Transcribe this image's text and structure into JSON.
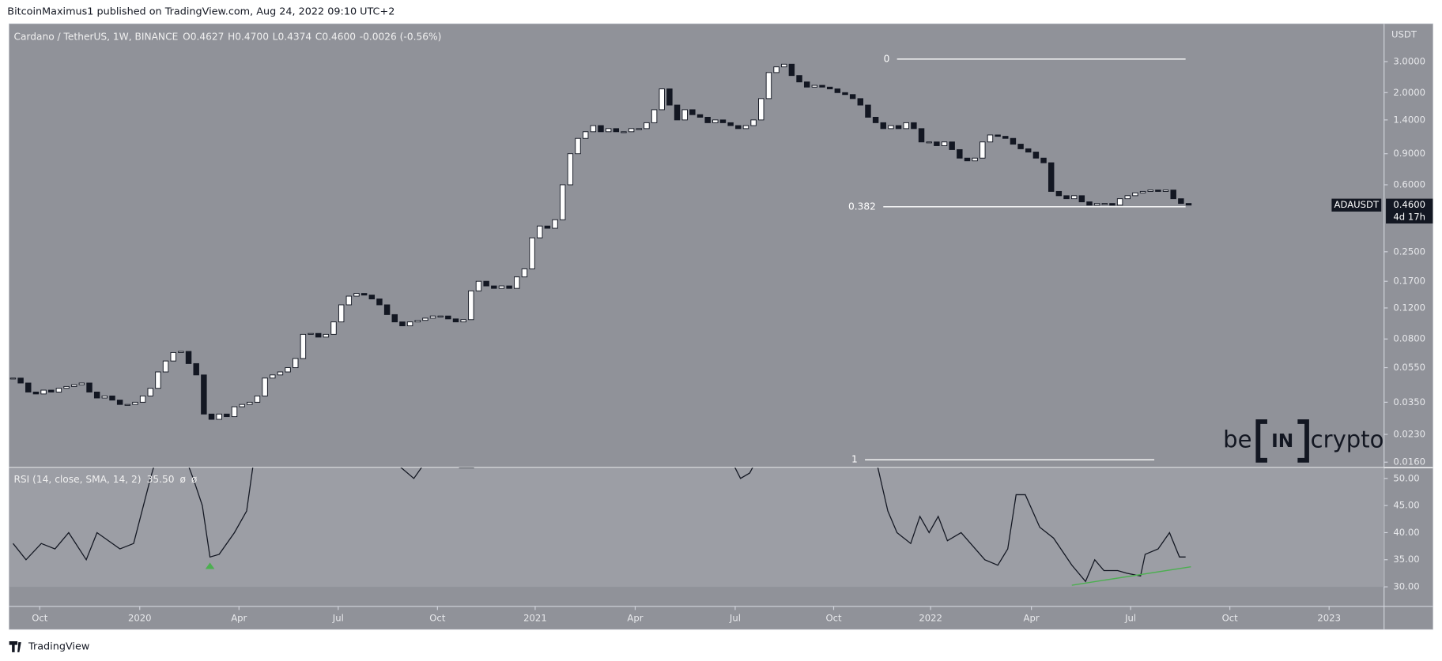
{
  "header": {
    "text": "BitcoinMaximus1 published on TradingView.com, Aug 24, 2022 09:10 UTC+2"
  },
  "watermark": {
    "left": "be",
    "box": "IN",
    "right": "crypto"
  },
  "footer": {
    "brand": "TradingView"
  },
  "chart_data": [
    {
      "type": "candlestick",
      "title": "Cardano / TetherUS, 1W, BINANCE",
      "legend_ohlc": [
        {
          "key": "O",
          "value": "0.4627"
        },
        {
          "key": "H",
          "value": "0.4700"
        },
        {
          "key": "L",
          "value": "0.4374"
        },
        {
          "key": "C",
          "value": "0.4600"
        }
      ],
      "change": "-0.0026 (-0.56%)",
      "y_unit": "USDT",
      "log_scale": true,
      "ylim": [
        0.0149,
        4.91
      ],
      "yticks": [
        {
          "value": 3,
          "label": "3.0000"
        },
        {
          "value": 2,
          "label": "2.0000"
        },
        {
          "value": 1.4,
          "label": "1.4000"
        },
        {
          "value": 0.9,
          "label": "0.9000"
        },
        {
          "value": 0.6,
          "label": "0.6000"
        },
        {
          "value": 0.25,
          "label": "0.2500"
        },
        {
          "value": 0.17,
          "label": "0.1700"
        },
        {
          "value": 0.12,
          "label": "0.1200"
        },
        {
          "value": 0.08,
          "label": "0.0800"
        },
        {
          "value": 0.055,
          "label": "0.0550"
        },
        {
          "value": 0.035,
          "label": "0.0350"
        },
        {
          "value": 0.023,
          "label": "0.0230"
        },
        {
          "value": 0.016,
          "label": "0.0160"
        }
      ],
      "xlim": [
        -0.5,
        179.6
      ],
      "xticks": [
        {
          "value": 3.5,
          "label": "Oct"
        },
        {
          "value": 16.6,
          "label": "2020"
        },
        {
          "value": 29.6,
          "label": "Apr"
        },
        {
          "value": 42.6,
          "label": "Jul"
        },
        {
          "value": 55.6,
          "label": "Oct"
        },
        {
          "value": 68.4,
          "label": "2021"
        },
        {
          "value": 81.5,
          "label": "Apr"
        },
        {
          "value": 94.6,
          "label": "Jul"
        },
        {
          "value": 107.5,
          "label": "Oct"
        },
        {
          "value": 120.2,
          "label": "2022"
        },
        {
          "value": 133.4,
          "label": "Apr"
        },
        {
          "value": 146.4,
          "label": "Jul"
        },
        {
          "value": 159.4,
          "label": "Oct"
        },
        {
          "value": 172.4,
          "label": "2023"
        }
      ],
      "series": [
        {
          "name": "ADAUSDT",
          "up_color": "#ffffff",
          "down_color": "#131722",
          "values": [
            0.048,
            0.045,
            0.04,
            0.039,
            0.041,
            0.04,
            0.042,
            0.043,
            0.044,
            0.045,
            0.04,
            0.037,
            0.038,
            0.036,
            0.034,
            0.034,
            0.035,
            0.038,
            0.042,
            0.052,
            0.06,
            0.067,
            0.068,
            0.058,
            0.05,
            0.03,
            0.028,
            0.03,
            0.029,
            0.033,
            0.034,
            0.035,
            0.038,
            0.048,
            0.05,
            0.052,
            0.055,
            0.062,
            0.085,
            0.086,
            0.082,
            0.085,
            0.1,
            0.125,
            0.14,
            0.145,
            0.142,
            0.135,
            0.125,
            0.11,
            0.1,
            0.095,
            0.1,
            0.102,
            0.105,
            0.108,
            0.108,
            0.104,
            0.1,
            0.103,
            0.15,
            0.17,
            0.16,
            0.155,
            0.16,
            0.155,
            0.18,
            0.2,
            0.3,
            0.35,
            0.34,
            0.38,
            0.6,
            0.9,
            1.1,
            1.2,
            1.3,
            1.2,
            1.25,
            1.2,
            1.2,
            1.25,
            1.25,
            1.35,
            1.6,
            2.1,
            1.7,
            1.4,
            1.6,
            1.5,
            1.45,
            1.35,
            1.4,
            1.35,
            1.3,
            1.25,
            1.3,
            1.4,
            1.85,
            2.6,
            2.8,
            2.9,
            2.5,
            2.3,
            2.15,
            2.2,
            2.15,
            2.1,
            2.0,
            1.95,
            1.85,
            1.7,
            1.45,
            1.35,
            1.25,
            1.3,
            1.25,
            1.35,
            1.25,
            1.05,
            1.05,
            1.0,
            1.05,
            0.95,
            0.85,
            0.82,
            0.85,
            1.05,
            1.15,
            1.13,
            1.1,
            1.02,
            0.96,
            0.92,
            0.85,
            0.8,
            0.55,
            0.52,
            0.5,
            0.52,
            0.48,
            0.46,
            0.47,
            0.47,
            0.46,
            0.5,
            0.52,
            0.54,
            0.55,
            0.56,
            0.55,
            0.56,
            0.5,
            0.47,
            0.46
          ]
        }
      ],
      "last_price": {
        "name": "ADAUSDT",
        "value": 0.46,
        "label": "0.4600",
        "countdown": "4d 17h"
      },
      "fib_levels": [
        {
          "label": "0",
          "value": 3.1,
          "x": [
            115.8,
            153.6
          ]
        },
        {
          "label": "0.382",
          "value": 0.45,
          "x": [
            114,
            153.6
          ]
        },
        {
          "label": "1",
          "value": 0.0165,
          "x": [
            111.6,
            149.5
          ]
        }
      ]
    },
    {
      "type": "line",
      "title": "RSI (14, close, SMA, 14, 2)",
      "value_label": "35.50",
      "extras": [
        "ø",
        "ø"
      ],
      "color": "#131722",
      "xlim": [
        -0.5,
        179.6
      ],
      "ylim": [
        26.4,
        52
      ],
      "yticks": [
        {
          "value": 50,
          "label": "50.00"
        },
        {
          "value": 45,
          "label": "45.00"
        },
        {
          "value": 40,
          "label": "40.00"
        },
        {
          "value": 35,
          "label": "35.00"
        },
        {
          "value": 30,
          "label": "30.00"
        }
      ],
      "band_low": 30,
      "x": [
        0,
        1.7,
        3.7,
        5.5,
        7.3,
        9.6,
        11,
        14,
        15.8,
        18,
        20.4,
        23.6,
        24.8,
        25.8,
        27,
        29,
        30.6,
        32,
        50,
        52.5,
        55,
        58.5,
        60.4,
        61,
        93.5,
        95.3,
        96.5,
        98,
        99,
        112.8,
        114.6,
        115.8,
        117.6,
        118.8,
        120,
        121.2,
        122.4,
        124.2,
        127.3,
        129,
        130.3,
        131.4,
        132.6,
        134.5,
        136.3,
        138.7,
        140.5,
        141.7,
        142.9,
        144.7,
        145.9,
        147.7,
        148.3,
        150,
        151.5,
        152.8,
        153.6
      ],
      "values": [
        38,
        35,
        38,
        37,
        40,
        35,
        40,
        37,
        38,
        50,
        62,
        50,
        45,
        35.5,
        36,
        40,
        44,
        58,
        53,
        50,
        55,
        52,
        52,
        null,
        55,
        50,
        51,
        55,
        null,
        55,
        44,
        40,
        38,
        43,
        40,
        43,
        38.5,
        40,
        35,
        34,
        37,
        47,
        47,
        41,
        39,
        34,
        31,
        35,
        33,
        33,
        32.5,
        32,
        36,
        37,
        40,
        35.5,
        35.5
      ],
      "trendline": {
        "color": "#4caf50",
        "x": [
          138.7,
          154.3
        ],
        "values": [
          30.3,
          33.7
        ]
      },
      "signal": {
        "color": "#4caf50",
        "x": 25.8,
        "value": 33.8
      }
    }
  ]
}
